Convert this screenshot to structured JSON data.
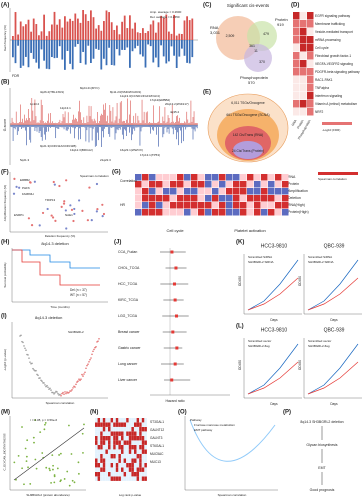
{
  "A": {
    "label": "(A)",
    "ylabel": "Gain frequency (%)",
    "amp_avg": "Amp. average = 0.2600",
    "del_avg": "Del. average = 0.2450",
    "fdr": "FDR"
  },
  "B": {
    "label": "(B)",
    "ylabel": "G-score",
    "peaks": [
      "8q24.21(MYC)",
      "3q26.2(TBL1XR1)",
      "8p11.23(NSD3/FGFR1)",
      "11q13.3(CCND1/FGF3/FGF4)",
      "17q12(ERBB2)",
      "20q13.2(ZNF217)",
      "1p13.2",
      "12p13.1",
      "4q35.2",
      "9p21.3(CDKN2A/CDKN2B)",
      "13q12.3(BRCA2)",
      "16q23.1(WWOX)",
      "17p13.1(TP53)",
      "5q21.3",
      "21q22.3"
    ]
  },
  "C": {
    "label": "(C)",
    "title": "Significant cis-events",
    "rna": "RNA",
    "rna_n": "3,031",
    "protein": "Protein",
    "protein_n": "919",
    "phospho": "Phosphoprotein",
    "phospho_n": "570",
    "regions": [
      "2,509",
      "361",
      "479",
      "370",
      "11"
    ]
  },
  "D": {
    "label": "(D)",
    "terms": [
      "EGFR signaling pathway",
      "Membrane trafficking",
      "Vesicle-mediated transport",
      "mRNA processing",
      "Cell cycle",
      "Fibroblast growth factor-1",
      "VEGFA-VEGFR2 signaling",
      "PDGFR-beta signaling pathway",
      "RAC1-PAK1",
      "TNFalpha",
      "Interferon signaling",
      "Vitamin A (retinol) metabolism",
      "NRF2"
    ],
    "columns": [
      "RNA",
      "Protein",
      "Phosphoprotein"
    ],
    "legend": "-Log10 (FDR)"
  },
  "E": {
    "label": "(E)",
    "rings": [
      "6,011 TSGs/Oncogene",
      "661 TSGs/Oncogene (SCNA)",
      "142 Cis/Trans (RNA)",
      "24 Cis/Trans (Protein)"
    ]
  },
  "F": {
    "label": "(F)",
    "ylabel": "Amplification frequency (%)",
    "xlabel": "Deletion frequency (%)",
    "legend": "Spearman correlation",
    "genes": [
      "ERBB2",
      "PHF6",
      "FAM83H",
      "TRIP13",
      "ESRP1",
      "NAE1"
    ]
  },
  "G": {
    "label": "(G)",
    "rows": [
      "RNA",
      "Protein",
      "Amplification",
      "Deletion",
      "RNA(High)",
      "Protein(High)"
    ],
    "groups": [
      "Correlation",
      "HR"
    ],
    "sections": [
      "Cell cycle",
      "Platelet activation"
    ],
    "legend": "Spearman correlation"
  },
  "H": {
    "label": "(H)",
    "title": "8q14.3 deletion",
    "del": "Del (n = 37)",
    "wt": "WT (n = 57)",
    "ylabel": "Survival probability",
    "xlabel": "Time (months)"
  },
  "I": {
    "label": "(I)",
    "title": "8q14.3 deletion",
    "xlabel": "Spearman correlation",
    "ylabel": "-Log10 (p-value)",
    "gene": "SH3BGRL2"
  },
  "J": {
    "label": "(J)",
    "cohorts": [
      "CCA_Fudan",
      "CHOL_TCGA",
      "HCC_TCGA",
      "KIRC_TCGA",
      "LGG_TCGA",
      "Breast cancer",
      "Gastric cancer",
      "Lung cancer",
      "Liver cancer"
    ],
    "xlabel": "Hazard ratio"
  },
  "K": {
    "label": "(K)",
    "cells": [
      "HCC3-9810",
      "QBC-939"
    ],
    "ctrl": "Scrambled SiRNA",
    "treat": "SH3BGRL2 SiRNA",
    "ylabel": "OD450",
    "xlabel": "Days"
  },
  "L": {
    "label": "(L)",
    "cells": [
      "HCC3-9810",
      "QBC-939"
    ],
    "ctrl": "Scrambled vector",
    "treat": "SH3BGRL2-flag",
    "ylabel": "OD450",
    "xlabel": "Days"
  },
  "M": {
    "label": "(M)",
    "stat": "r = 0.38, p = 0.59e-6",
    "xlabel": "SH3BGRL2 (protein abundance)",
    "ylabel": "C_GLYCAN_BIOSYNTHESIS"
  },
  "N": {
    "label": "(N)",
    "genes": [
      "ST3GAL1",
      "GALNT12",
      "GALNT3",
      "ST6GAL1",
      "MUC5AC",
      "MUC13"
    ],
    "xlabel": "Log rank p-value"
  },
  "O": {
    "label": "(O)",
    "legend_title": "Pathway",
    "pathways": [
      "Fructose mannose metabolism",
      "EMT pathway"
    ],
    "xlabel": "Spearman correlation"
  },
  "P": {
    "label": "(P)",
    "steps": [
      "8q14.3 SH3BGRL2 deletion",
      "Glycan biosynthesis",
      "EMT",
      "Good prognosis"
    ]
  }
}
